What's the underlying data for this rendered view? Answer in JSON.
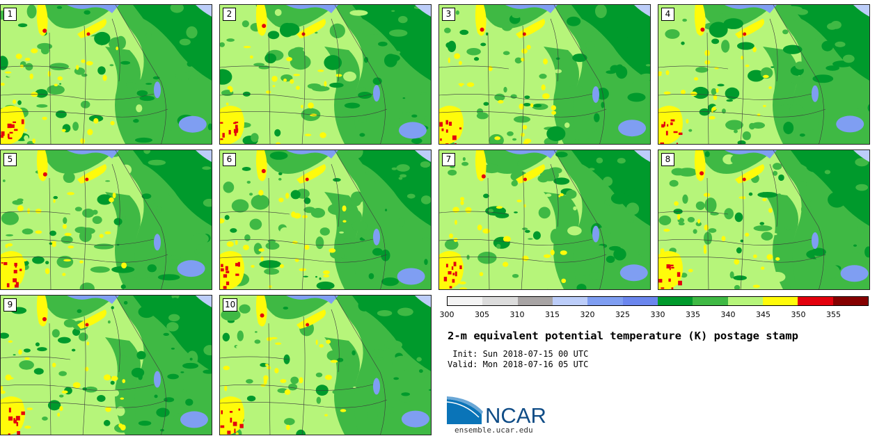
{
  "panels": [
    {
      "label": "1"
    },
    {
      "label": "2"
    },
    {
      "label": "3"
    },
    {
      "label": "4"
    },
    {
      "label": "5"
    },
    {
      "label": "6"
    },
    {
      "label": "7"
    },
    {
      "label": "8"
    },
    {
      "label": "9"
    },
    {
      "label": "10"
    }
  ],
  "colorbar": {
    "colors": [
      "#f4f4f4",
      "#dcdcdc",
      "#a8a4a4",
      "#bccdf9",
      "#7f9ef2",
      "#6b86ee",
      "#009a2c",
      "#3fb944",
      "#b6f57a",
      "#fffb0a",
      "#e3000d",
      "#850000"
    ],
    "ticks": [
      "300",
      "305",
      "310",
      "315",
      "320",
      "325",
      "330",
      "335",
      "340",
      "345",
      "350",
      "355"
    ]
  },
  "title": "2-m equivalent potential temperature (K) postage stamp",
  "init_label": " Init: Sun 2018-07-15 00 UTC",
  "valid_label": "Valid: Mon 2018-07-16 05 UTC",
  "logo_text": "NCAR",
  "site": "ensemble.ucar.edu"
}
